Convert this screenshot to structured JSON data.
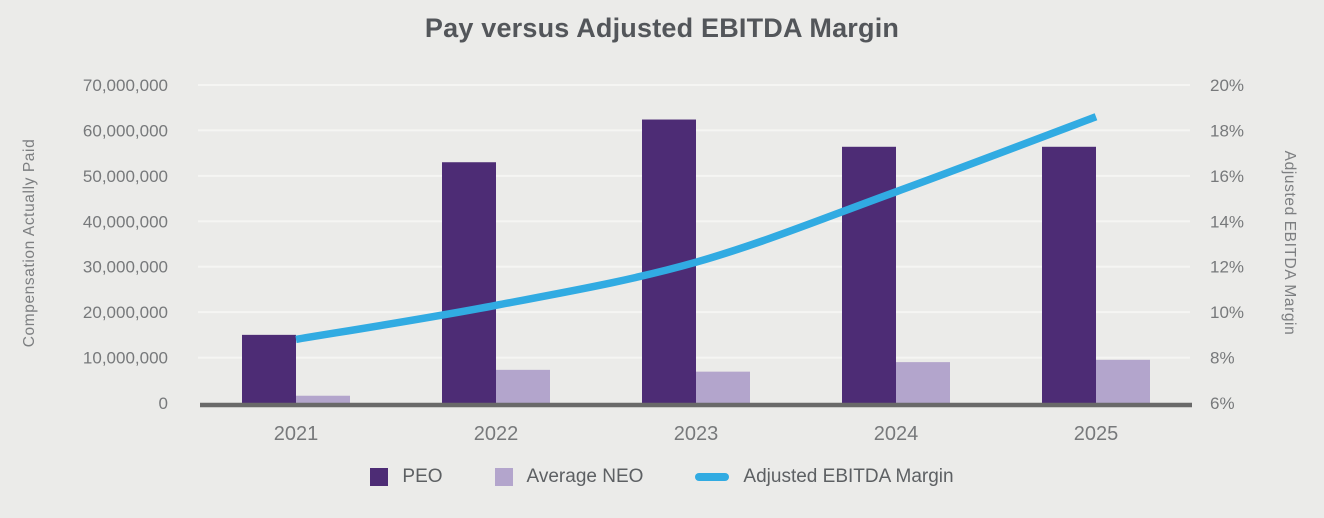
{
  "title": "Pay versus Adjusted EBITDA Margin",
  "colors": {
    "background": "#EBEBE9",
    "peo_bar": "#4D2C75",
    "neo_bar": "#B3A5CC",
    "margin_line": "#31ABE2",
    "gridline": "#F5F5F3",
    "baseline": "#696969",
    "title_text": "#53565A",
    "axis_tick_text": "#77797B",
    "axis_title_text": "#7D7F81",
    "legend_text": "#5D6063"
  },
  "chart_data": {
    "type": "combo-bar-line",
    "title": "Pay versus Adjusted EBITDA Margin",
    "categories": [
      "2021",
      "2022",
      "2023",
      "2024",
      "2025"
    ],
    "series": [
      {
        "name": "PEO",
        "type": "bar",
        "axis": "left",
        "color_key": "peo_bar",
        "values": [
          15000000,
          53000000,
          62400000,
          56400000,
          56400000
        ]
      },
      {
        "name": "Average NEO",
        "type": "bar",
        "axis": "left",
        "color_key": "neo_bar",
        "values": [
          1600000,
          7300000,
          6900000,
          9000000,
          9500000
        ]
      },
      {
        "name": "Adjusted EBITDA Margin",
        "type": "line",
        "axis": "right",
        "color_key": "margin_line",
        "values": [
          8.8,
          10.3,
          12.2,
          15.3,
          18.6
        ]
      }
    ],
    "left_axis": {
      "label": "Compensation Actually Paid",
      "min": 0,
      "max": 70000000,
      "step": 10000000,
      "format": "thousands-comma"
    },
    "right_axis": {
      "label": "Adjusted EBITDA Margin",
      "min": 6,
      "max": 20,
      "step": 2,
      "format": "percent"
    },
    "grid": true,
    "legend_position": "bottom"
  }
}
